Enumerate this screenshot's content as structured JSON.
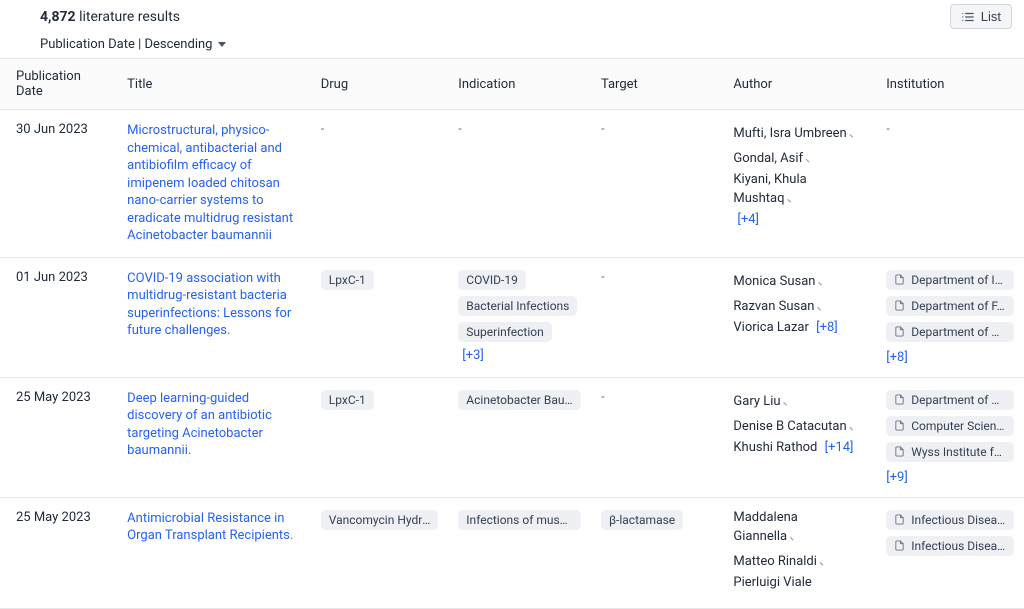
{
  "header": {
    "count": "4,872",
    "count_label": "literature results",
    "list_button": "List"
  },
  "sort": {
    "label": "Publication Date | Descending"
  },
  "columns": {
    "date": "Publication Date",
    "title": "Title",
    "drug": "Drug",
    "indication": "Indication",
    "target": "Target",
    "author": "Author",
    "institution": "Institution"
  },
  "rows": [
    {
      "date": "30 Jun 2023",
      "title": "Microstructural, physico-chemical, antibacterial and antibiofilm efficacy of imipenem loaded chitosan nano-carrier systems to eradicate multidrug resistant Acinetobacter baumannii",
      "drugs": [],
      "indications": [],
      "indication_more": "",
      "targets": [],
      "authors": [
        "Mufti, Isra Umbreen",
        "Gondal, Asif",
        "Kiyani, Khula Mushtaq"
      ],
      "author_more": "[+4]",
      "institutions": [],
      "institution_more": ""
    },
    {
      "date": "01 Jun 2023",
      "title": "COVID-19 association with multidrug-resistant bacteria superinfections: Lessons for future challenges.",
      "drugs": [
        "LpxC-1"
      ],
      "indications": [
        "COVID-19",
        "Bacterial Infections",
        "Superinfection"
      ],
      "indication_more": "[+3]",
      "targets": [],
      "authors": [
        "Monica Susan",
        "Razvan Susan",
        "Viorica Lazar"
      ],
      "author_more": "[+8]",
      "institutions": [
        "Department of In…",
        "Department of F…",
        "Department of G…"
      ],
      "institution_more": "[+8]"
    },
    {
      "date": "25 May 2023",
      "title": "Deep learning-guided discovery of an antibiotic targeting Acinetobacter baumannii.",
      "drugs": [
        "LpxC-1"
      ],
      "indications": [
        "Acinetobacter Bau…"
      ],
      "indication_more": "",
      "targets": [],
      "authors": [
        "Gary Liu",
        "Denise B Catacutan",
        "Khushi Rathod"
      ],
      "author_more": "[+14]",
      "institutions": [
        "Department of Bi…",
        "Computer Scien…",
        "Wyss Institute fo…"
      ],
      "institution_more": "[+9]"
    },
    {
      "date": "25 May 2023",
      "title": "Antimicrobial Resistance in Organ Transplant Recipients.",
      "drugs": [
        "Vancomycin Hydroc…"
      ],
      "indications": [
        "Infections of muscu…"
      ],
      "indication_more": "",
      "targets": [
        "β-lactamase"
      ],
      "authors": [
        "Maddalena Giannella",
        "Matteo Rinaldi",
        "Pierluigi Viale"
      ],
      "author_more": "",
      "institutions": [
        "Infectious Diseas…",
        "Infectious Diseas…"
      ],
      "institution_more": ""
    }
  ]
}
